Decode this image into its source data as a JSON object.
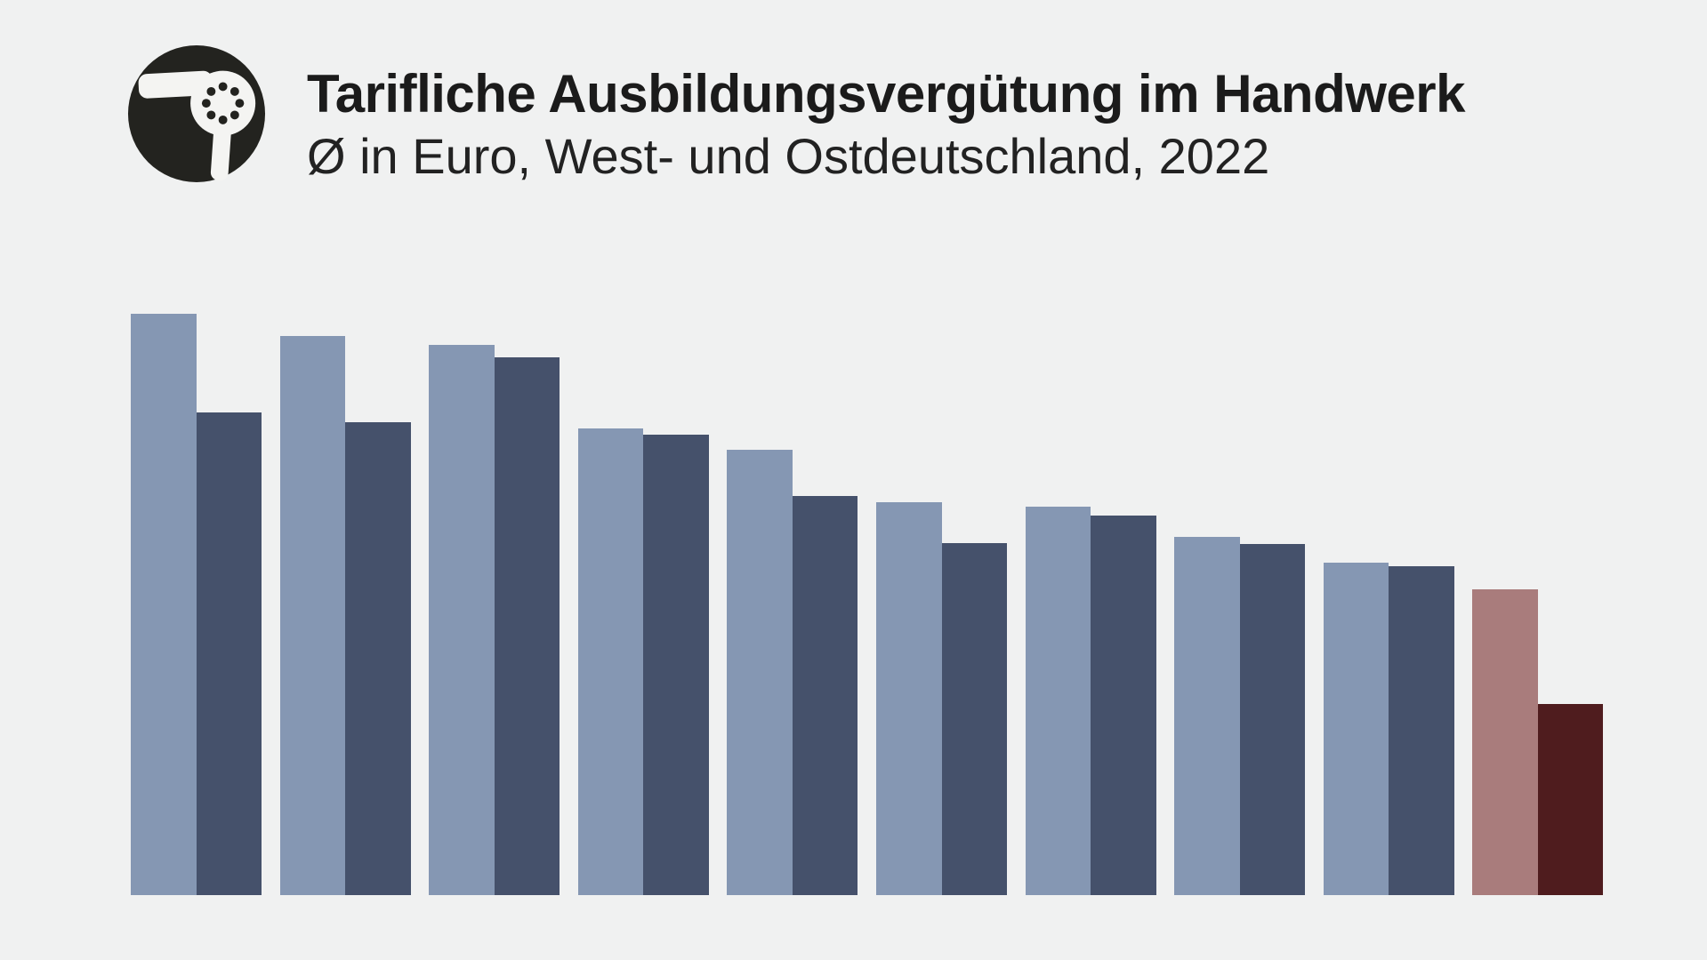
{
  "header": {
    "title": "Tarifliche Ausbildungsvergütung im Handwerk",
    "subtitle": "Ø in Euro, West- und Ostdeutschland, 2022",
    "logo_icon": "hairdryer-icon"
  },
  "colors": {
    "background": "#f0f1f1",
    "title_text": "#1b1b1b",
    "subtitle_text": "#222222",
    "logo_circle": "#23231f",
    "logo_glyph": "#f4f4f2",
    "bar_light": "#8597b3",
    "bar_dark": "#45516b",
    "bar_light_highlight": "#a97c7c",
    "bar_dark_highlight": "#4f1c1e"
  },
  "chart_data": {
    "type": "bar",
    "orientation": "vertical",
    "grouped": true,
    "title": "Tarifliche Ausbildungsvergütung im Handwerk",
    "subtitle": "Ø in Euro, West- und Ostdeutschland, 2022",
    "value_unit": "pixels (no numeric axis, tick labels or data labels are visible in the screenshot; bar heights measured from pixels)",
    "categories": [
      "",
      "",
      "",
      "",
      "",
      "",
      "",
      "",
      "",
      ""
    ],
    "series": [
      {
        "name": "West",
        "color": "#8597b3",
        "values": [
          654,
          629,
          619,
          525,
          501,
          442,
          437,
          403,
          374,
          344
        ]
      },
      {
        "name": "Ost",
        "color": "#45516b",
        "values": [
          543,
          532,
          605,
          518,
          449,
          396,
          427,
          395,
          370,
          215
        ]
      }
    ],
    "highlighted_group_index": 9,
    "highlight_colors": {
      "West": "#a97c7c",
      "Ost": "#4f1c1e"
    },
    "axes_visible": false,
    "gridlines_visible": false,
    "legend_visible": false,
    "data_labels_visible": false
  }
}
